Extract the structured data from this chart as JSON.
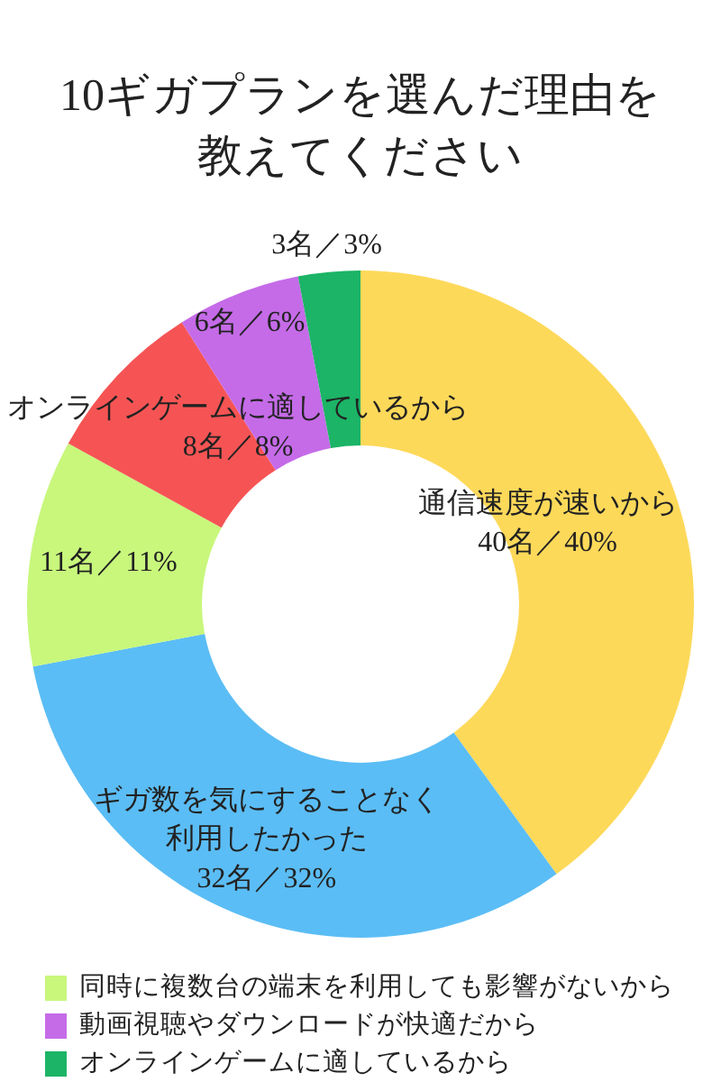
{
  "chart_data": {
    "type": "donut",
    "title": "10ギガプランを選んだ理由を教えてください",
    "categories": [
      null,
      null,
      "同時に複数台の端末を利用しても影響がないから",
      null,
      "動画視聴やダウンロードが快適だから",
      "オンラインゲームに適しているから"
    ],
    "values": [
      40,
      32,
      11,
      8,
      6,
      3
    ],
    "colors": [
      "#fdd95a",
      "#5bbdf5",
      "#c8f77c",
      "#f65454",
      "#c56be8",
      "#1cb466"
    ],
    "value_labels": [
      "通信速度が速いから40名／40%",
      "ギガ数を気にすることなく利用したかった32名／32%",
      "11名／11%",
      "オンラインゲームに適しているから8名／8%",
      "6名／6%",
      "3名／3%"
    ],
    "legend": "bottom"
  }
}
